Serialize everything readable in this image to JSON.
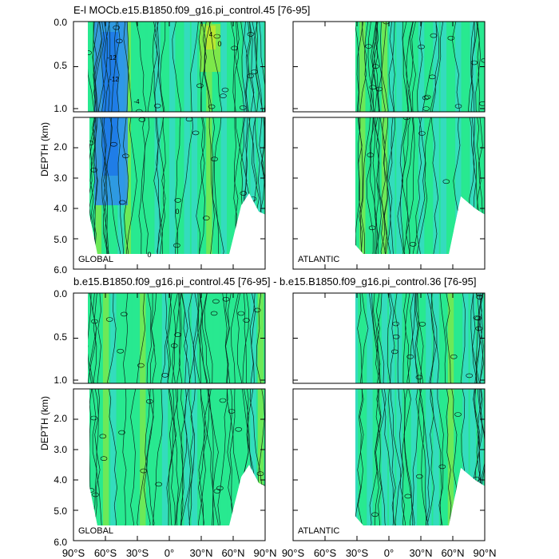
{
  "chart_data": {
    "type": "contour",
    "panels": [
      {
        "id": "top",
        "title": "E-l MOCb.e15.B1850.f09_g16.pi_control.45 [76-95]",
        "ylabel": "DEPTH (km)",
        "regions": [
          "GLOBAL",
          "ATLANTIC"
        ]
      },
      {
        "id": "bottom",
        "title": "b.e15.B1850.f09_g16.pi_control.45 [76-95] - b.e15.B1850.f09_g16.pi_control.36 [76-95]",
        "ylabel": "DEPTH (km)",
        "regions": [
          "GLOBAL",
          "ATLANTIC"
        ]
      }
    ],
    "upper_y_ticks": [
      "0.0",
      "0.5",
      "1.0"
    ],
    "lower_y_ticks": [
      "2.0",
      "3.0",
      "4.0",
      "5.0",
      "6.0"
    ],
    "x_ticks": [
      "90°S",
      "60°S",
      "30°S",
      "0°",
      "30°N",
      "60°N",
      "90°N"
    ],
    "inline_labels": [
      "0",
      "0",
      "0",
      "-12",
      "-12",
      "-4",
      "4"
    ],
    "depth_range_km": [
      0,
      6
    ],
    "lat_range_deg": [
      -90,
      90
    ],
    "fill_colors": {
      "negative_strong": "#2f8cf0",
      "negative": "#37d8c8",
      "near_zero": "#28e890",
      "positive": "#7de84a"
    }
  }
}
